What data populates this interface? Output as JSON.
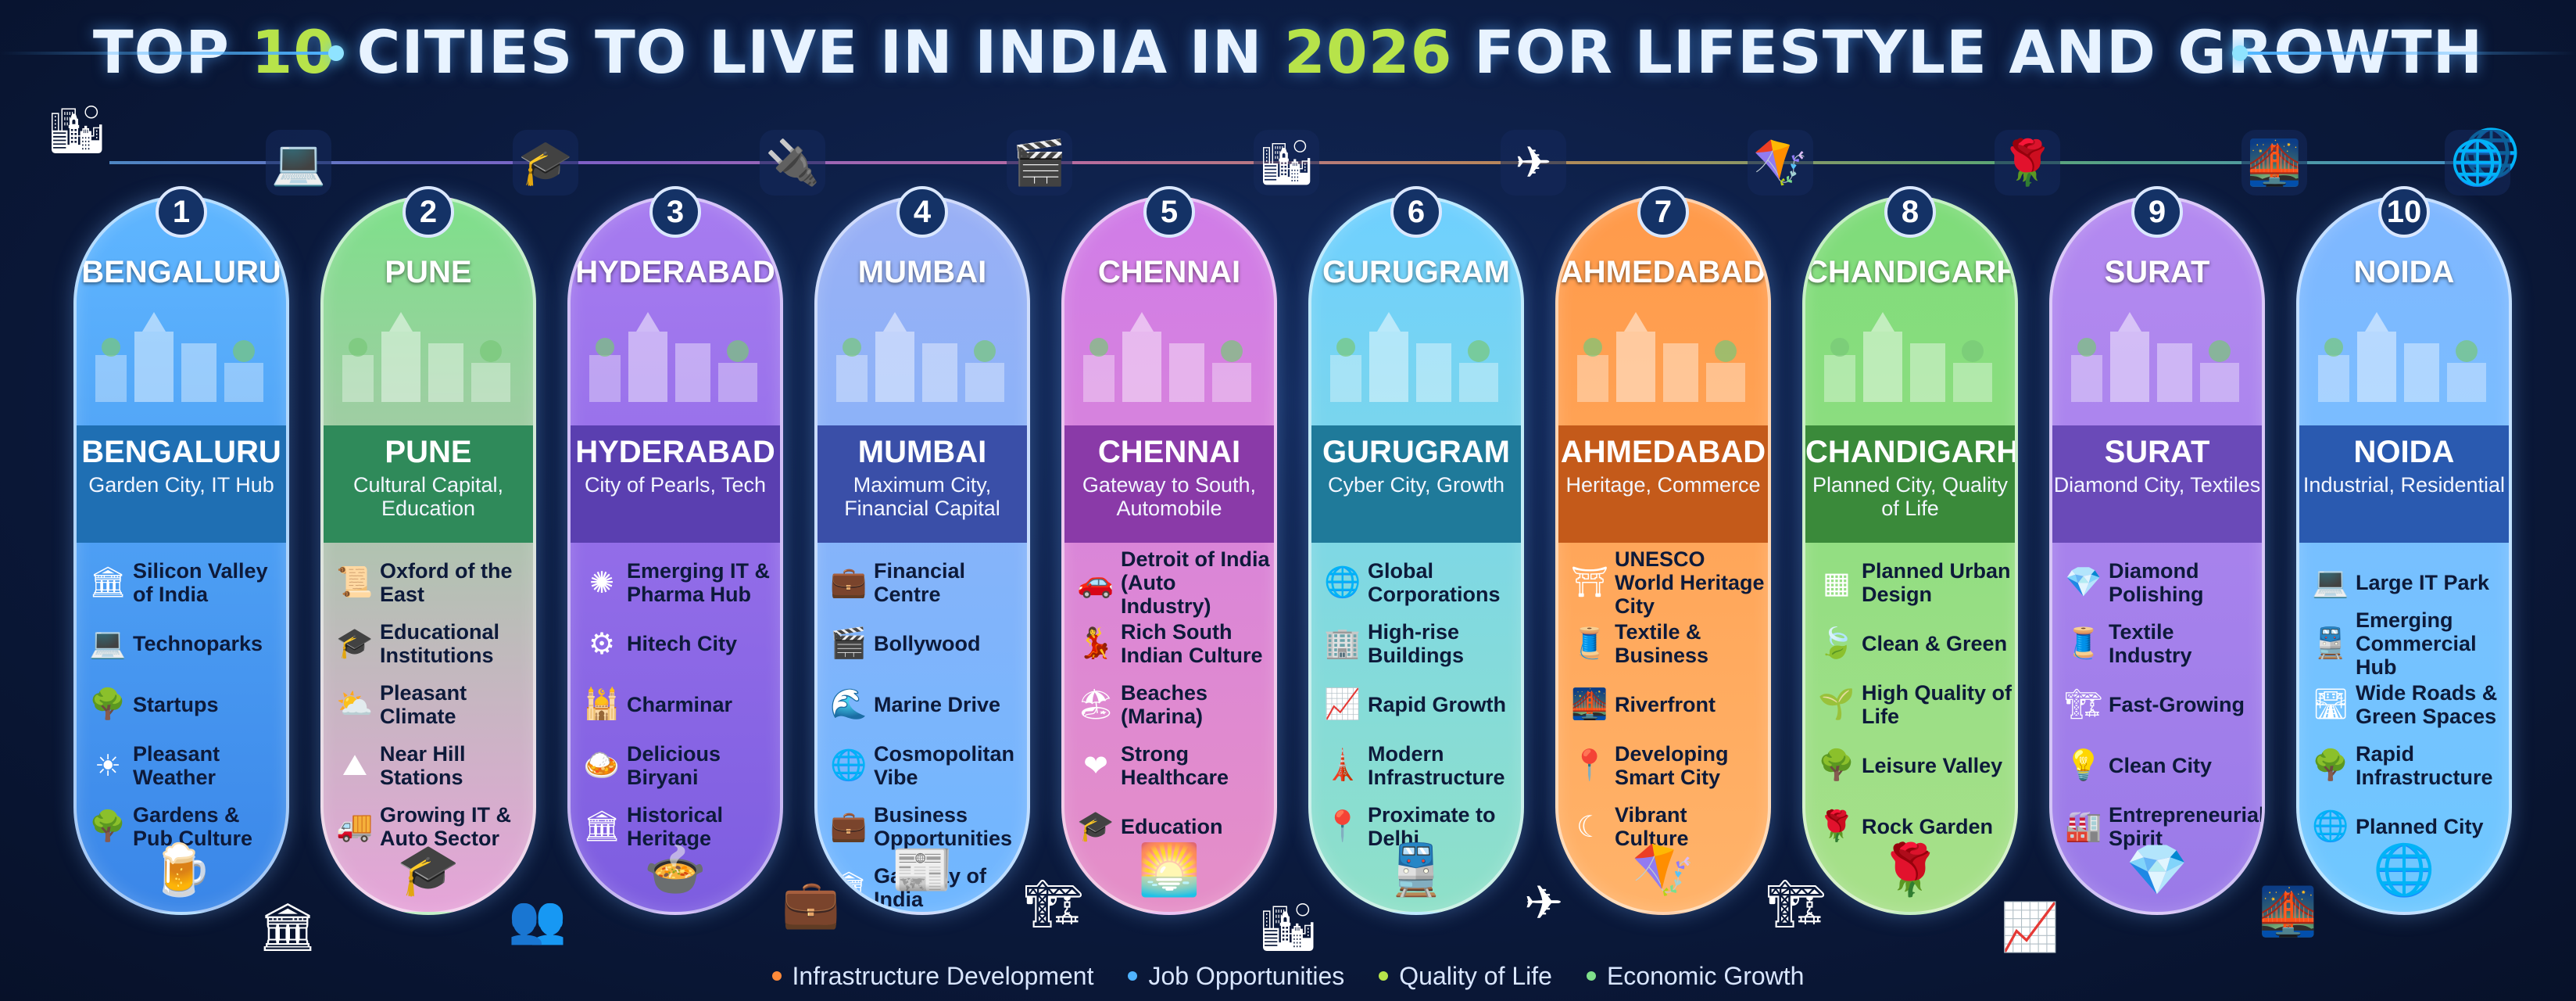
{
  "header": {
    "title_pre": "TOP ",
    "title_num": "10",
    "title_mid": " CITIES TO LIVE IN INDIA IN ",
    "title_year": "2026",
    "title_post": " FOR LIFESTYLE AND GROWTH"
  },
  "colors": {
    "title_highlight": "#b7e34a",
    "background": "#0b1a3d"
  },
  "cities": [
    {
      "rank": "1",
      "name": "BENGALURU",
      "banner_name": "BENGALURU",
      "tagline": "Garden City, IT Hub",
      "top_icon": "laptop-icon",
      "top_glyph": "💻",
      "gradient": [
        "#5fb6ff",
        "#3a86e8"
      ],
      "banner_color": "#1f6fb3",
      "features": [
        {
          "icon": "landmark-icon",
          "glyph": "🏛",
          "text": "Silicon Valley of India"
        },
        {
          "icon": "laptop-icon",
          "glyph": "💻",
          "text": "Technoparks"
        },
        {
          "icon": "tree-icon",
          "glyph": "🌳",
          "text": "Startups"
        },
        {
          "icon": "sun-icon",
          "glyph": "☀",
          "text": "Pleasant Weather"
        },
        {
          "icon": "tree-icon",
          "glyph": "🌳",
          "text": "Gardens & Pub Culture"
        }
      ],
      "bottom_icon": "beer-icon",
      "bottom_glyph": "🍺"
    },
    {
      "rank": "2",
      "name": "PUNE",
      "banner_name": "PUNE",
      "tagline": "Cultural Capital, Education",
      "top_icon": "graduation-cap-icon",
      "top_glyph": "🎓",
      "gradient": [
        "#7ee08a",
        "#e6a4d9"
      ],
      "banner_color": "#2f8a5a",
      "features": [
        {
          "icon": "scroll-icon",
          "glyph": "📜",
          "text": "Oxford of the East"
        },
        {
          "icon": "graduation-cap-icon",
          "glyph": "🎓",
          "text": "Educational Institutions"
        },
        {
          "icon": "sun-cloud-icon",
          "glyph": "⛅",
          "text": "Pleasant Climate"
        },
        {
          "icon": "mountain-icon",
          "glyph": "⛰",
          "text": "Near Hill Stations"
        },
        {
          "icon": "truck-icon",
          "glyph": "🚚",
          "text": "Growing IT & Auto Sector"
        }
      ],
      "bottom_icon": "graduation-cap-icon",
      "bottom_glyph": "🎓"
    },
    {
      "rank": "3",
      "name": "HYDERABAD",
      "banner_name": "HYDERABAD",
      "tagline": "City of Pearls, Tech",
      "top_icon": "chip-icon",
      "top_glyph": "🔌",
      "gradient": [
        "#a77cf0",
        "#7d5de0"
      ],
      "banner_color": "#5a3fb0",
      "features": [
        {
          "icon": "network-icon",
          "glyph": "✺",
          "text": "Emerging IT & Pharma Hub"
        },
        {
          "icon": "gear-icon",
          "glyph": "⚙",
          "text": "Hitech City"
        },
        {
          "icon": "charminar-icon",
          "glyph": "🕌",
          "text": "Charminar"
        },
        {
          "icon": "biryani-icon",
          "glyph": "🍛",
          "text": "Delicious Biryani"
        },
        {
          "icon": "heritage-icon",
          "glyph": "🏛",
          "text": "Historical Heritage"
        }
      ],
      "bottom_icon": "biryani-bowl-icon",
      "bottom_glyph": "🍲"
    },
    {
      "rank": "4",
      "name": "MUMBAI",
      "banner_name": "MUMBAI",
      "tagline": "Maximum City, Financial Capital",
      "top_icon": "clapperboard-icon",
      "top_glyph": "🎬",
      "gradient": [
        "#9ab0f5",
        "#6fb7ff"
      ],
      "banner_color": "#3a4fa8",
      "features": [
        {
          "icon": "briefcase-icon",
          "glyph": "💼",
          "text": "Financial Centre"
        },
        {
          "icon": "clapperboard-icon",
          "glyph": "🎬",
          "text": "Bollywood"
        },
        {
          "icon": "wave-icon",
          "glyph": "🌊",
          "text": "Marine Drive"
        },
        {
          "icon": "globe-icon",
          "glyph": "🌐",
          "text": "Cosmopolitan Vibe"
        },
        {
          "icon": "briefcase-icon",
          "glyph": "💼",
          "text": "Business Opportunities"
        },
        {
          "icon": "gateway-icon",
          "glyph": "🏛",
          "text": "Gateway of India"
        }
      ],
      "bottom_icon": "newspaper-icon",
      "bottom_glyph": "📰"
    },
    {
      "rank": "5",
      "name": "CHENNAI",
      "banner_name": "CHENNAI",
      "tagline": "Gateway to South, Automobile",
      "top_icon": "buildings-icon",
      "top_glyph": "🏙",
      "gradient": [
        "#d07ce8",
        "#e58fc7"
      ],
      "banner_color": "#8a3aa8",
      "features": [
        {
          "icon": "car-icon",
          "glyph": "🚗",
          "text": "Detroit of India (Auto Industry)"
        },
        {
          "icon": "dancer-icon",
          "glyph": "💃",
          "text": "Rich South Indian Culture"
        },
        {
          "icon": "beach-icon",
          "glyph": "🏖",
          "text": "Beaches (Marina)"
        },
        {
          "icon": "heart-pulse-icon",
          "glyph": "❤",
          "text": "Strong Healthcare"
        },
        {
          "icon": "graduation-cap-icon",
          "glyph": "🎓",
          "text": "Education"
        }
      ],
      "bottom_icon": "sunset-sea-icon",
      "bottom_glyph": "🌅"
    },
    {
      "rank": "6",
      "name": "GURUGRAM",
      "banner_name": "GURUGRAM",
      "tagline": "Cyber City, Growth",
      "top_icon": "airplane-icon",
      "top_glyph": "✈",
      "gradient": [
        "#6fd0ff",
        "#8fe0c8"
      ],
      "banner_color": "#1f7a9a",
      "features": [
        {
          "icon": "globe-icon",
          "glyph": "🌐",
          "text": "Global Corporations"
        },
        {
          "icon": "buildings-icon",
          "glyph": "🏢",
          "text": "High-rise Buildings"
        },
        {
          "icon": "chart-icon",
          "glyph": "📈",
          "text": "Rapid Growth"
        },
        {
          "icon": "tower-icon",
          "glyph": "🗼",
          "text": "Modern Infrastructure"
        },
        {
          "icon": "location-pin-icon",
          "glyph": "📍",
          "text": "Proximate to Delhi"
        }
      ],
      "bottom_icon": "metro-train-icon",
      "bottom_glyph": "🚆"
    },
    {
      "rank": "7",
      "name": "AHMEDABAD",
      "banner_name": "AHMEDABAD",
      "tagline": "Heritage, Commerce",
      "top_icon": "kite-icon",
      "top_glyph": "🪁",
      "gradient": [
        "#ff9a4a",
        "#ffb36a"
      ],
      "banner_color": "#c45a1a",
      "features": [
        {
          "icon": "unesco-icon",
          "glyph": "⛩",
          "text": "UNESCO World Heritage City"
        },
        {
          "icon": "textile-icon",
          "glyph": "🧵",
          "text": "Textile & Business"
        },
        {
          "icon": "river-icon",
          "glyph": "🌉",
          "text": "Riverfront"
        },
        {
          "icon": "location-pin-icon",
          "glyph": "📍",
          "text": "Developing Smart City"
        },
        {
          "icon": "moon-icon",
          "glyph": "☾",
          "text": "Vibrant Culture"
        }
      ],
      "bottom_icon": "kite-icon",
      "bottom_glyph": "🪁"
    },
    {
      "rank": "8",
      "name": "CHANDIGARH",
      "banner_name": "CHANDIGARH",
      "tagline": "Planned City, Quality of Life",
      "top_icon": "rose-icon",
      "top_glyph": "🌹",
      "gradient": [
        "#7edc7a",
        "#a8e08a"
      ],
      "banner_color": "#3a8a3a",
      "features": [
        {
          "icon": "grid-icon",
          "glyph": "▦",
          "text": "Planned Urban Design"
        },
        {
          "icon": "leaf-icon",
          "glyph": "🍃",
          "text": "Clean & Green"
        },
        {
          "icon": "plant-icon",
          "glyph": "🌱",
          "text": "High Quality of Life"
        },
        {
          "icon": "tree-icon",
          "glyph": "🌳",
          "text": "Leisure Valley"
        },
        {
          "icon": "rose-icon",
          "glyph": "🌹",
          "text": "Rock Garden"
        }
      ],
      "bottom_icon": "rose-icon",
      "bottom_glyph": "🌹"
    },
    {
      "rank": "9",
      "name": "SURAT",
      "banner_name": "SURAT",
      "tagline": "Diamond City, Textiles",
      "top_icon": "bridge-icon",
      "top_glyph": "🌉",
      "gradient": [
        "#b48af0",
        "#9a7ae8"
      ],
      "banner_color": "#6a4ab8",
      "features": [
        {
          "icon": "diamond-icon",
          "glyph": "💎",
          "text": "Diamond Polishing"
        },
        {
          "icon": "textile-icon",
          "glyph": "🧵",
          "text": "Textile Industry"
        },
        {
          "icon": "fence-icon",
          "glyph": "🏗",
          "text": "Fast-Growing"
        },
        {
          "icon": "bulb-icon",
          "glyph": "💡",
          "text": "Clean City"
        },
        {
          "icon": "factory-icon",
          "glyph": "🏭",
          "text": "Entrepreneurial Spirit"
        }
      ],
      "bottom_icon": "diamond-icon",
      "bottom_glyph": "💎"
    },
    {
      "rank": "10",
      "name": "NOIDA",
      "banner_name": "NOIDA",
      "tagline": "Industrial, Residential",
      "top_icon": "globe-icon",
      "top_glyph": "🌐",
      "gradient": [
        "#7fb7ff",
        "#6fc8ff"
      ],
      "banner_color": "#2a5ab0",
      "features": [
        {
          "icon": "laptop-icon",
          "glyph": "💻",
          "text": "Large IT Park"
        },
        {
          "icon": "train-icon",
          "glyph": "🚆",
          "text": "Emerging Commercial Hub"
        },
        {
          "icon": "road-icon",
          "glyph": "🛣",
          "text": "Wide Roads & Green Spaces"
        },
        {
          "icon": "trees-icon",
          "glyph": "🌳",
          "text": "Rapid Infrastructure"
        },
        {
          "icon": "globe-icon",
          "glyph": "🌐",
          "text": "Planned City"
        }
      ],
      "bottom_icon": "globe-icon",
      "bottom_glyph": "🌐"
    }
  ],
  "legend": [
    {
      "label": "Infrastructure Development",
      "color": "#ff8a3a"
    },
    {
      "label": "Job Opportunities",
      "color": "#4fb3ff"
    },
    {
      "label": "Quality of Life",
      "color": "#b7e34a"
    },
    {
      "label": "Economic Growth",
      "color": "#7fe08a"
    }
  ]
}
